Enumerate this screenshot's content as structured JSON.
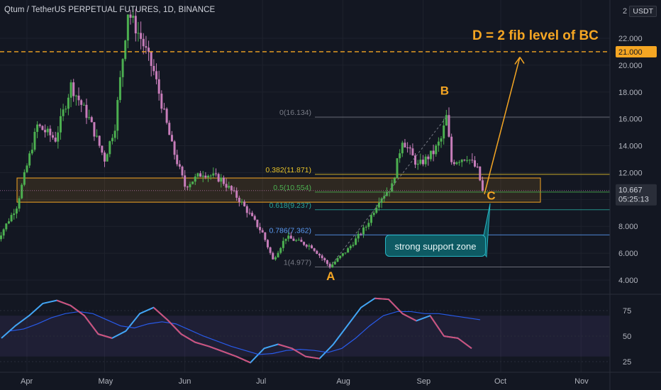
{
  "header": {
    "title": "Qtum / TetherUS PERPETUAL FUTURES, 1D, BINANCE",
    "currency_badge": "USDT"
  },
  "colors": {
    "background": "#131722",
    "up_candle": "#4caf50",
    "down_candle": "#c77dba",
    "fib_line": "#787b86",
    "accent": "#f5a623",
    "rsi_line": "#42a5f5",
    "rsi_ma": "#2962ff",
    "support_box": "#0e5a63"
  },
  "chart_data": [
    {
      "type": "candlestick",
      "title": "Qtum / TetherUS PERPETUAL FUTURES, 1D, BINANCE",
      "x_ticks": [
        "Apr",
        "May",
        "Jun",
        "Jul",
        "Aug",
        "Sep",
        "Oct",
        "Nov"
      ],
      "y_ticks": [
        "4.000",
        "6.000",
        "8.000",
        "10.000",
        "12.000",
        "14.000",
        "16.000",
        "18.000",
        "20.000",
        "22.000"
      ],
      "y_top_tick": "2",
      "ylim": [
        3.0,
        24.0
      ],
      "last_price": "10.667",
      "countdown": "05:25:13",
      "dashed_level": {
        "value": 21.0,
        "label": "21.000"
      },
      "price_path": [
        {
          "date": "Mar 20",
          "price": 6.8
        },
        {
          "date": "Mar 28",
          "price": 9.5
        },
        {
          "date": "Apr 5",
          "price": 15.5
        },
        {
          "date": "Apr 12",
          "price": 14.5
        },
        {
          "date": "Apr 18",
          "price": 18.5
        },
        {
          "date": "Apr 25",
          "price": 16.0
        },
        {
          "date": "May 1",
          "price": 13.0
        },
        {
          "date": "May 5",
          "price": 15.5
        },
        {
          "date": "May 10",
          "price": 24.0
        },
        {
          "date": "May 15",
          "price": 22.0
        },
        {
          "date": "May 20",
          "price": 19.5
        },
        {
          "date": "May 27",
          "price": 14.0
        },
        {
          "date": "Jun 1",
          "price": 11.0
        },
        {
          "date": "Jun 8",
          "price": 12.0
        },
        {
          "date": "Jun 15",
          "price": 11.5
        },
        {
          "date": "Jun 22",
          "price": 10.0
        },
        {
          "date": "Jul 1",
          "price": 7.5
        },
        {
          "date": "Jul 5",
          "price": 5.5
        },
        {
          "date": "Jul 10",
          "price": 7.2
        },
        {
          "date": "Jul 20",
          "price": 6.5
        },
        {
          "date": "Jul 27",
          "price": 5.0
        },
        {
          "date": "Aug 3",
          "price": 6.3
        },
        {
          "date": "Aug 10",
          "price": 8.0
        },
        {
          "date": "Aug 15",
          "price": 10.0
        },
        {
          "date": "Aug 20",
          "price": 11.0
        },
        {
          "date": "Aug 24",
          "price": 14.5
        },
        {
          "date": "Aug 30",
          "price": 12.5
        },
        {
          "date": "Sep 5",
          "price": 13.5
        },
        {
          "date": "Sep 8",
          "price": 14.5
        },
        {
          "date": "Sep 10",
          "price": 16.134
        },
        {
          "date": "Sep 12",
          "price": 12.8
        },
        {
          "date": "Sep 18",
          "price": 13.2
        },
        {
          "date": "Sep 22",
          "price": 12.2
        },
        {
          "date": "Sep 24",
          "price": 10.667
        }
      ],
      "fib_levels": [
        {
          "ratio": "0",
          "value": 16.134,
          "label": "0(16.134)",
          "color": "#787b86"
        },
        {
          "ratio": "0.382",
          "value": 11.871,
          "label": "0.382(11.871)",
          "color": "#e6c229"
        },
        {
          "ratio": "0.5",
          "value": 10.554,
          "label": "0.5(10.554)",
          "color": "#4caf50"
        },
        {
          "ratio": "0.618",
          "value": 9.237,
          "label": "0.618(9.237)",
          "color": "#26a69a"
        },
        {
          "ratio": "0.786",
          "value": 7.362,
          "label": "0.786(7.362)",
          "color": "#5b9cf6"
        },
        {
          "ratio": "1",
          "value": 4.977,
          "label": "1(4.977)",
          "color": "#787b86"
        }
      ],
      "support_zone": {
        "low": 9.8,
        "high": 11.6
      },
      "wave_labels": [
        {
          "text": "A",
          "date": "Jul 27",
          "value": 4.0
        },
        {
          "text": "B",
          "date": "Sep 9",
          "value": 17.8
        },
        {
          "text": "C",
          "date": "Sep 27",
          "value": 10.0
        }
      ],
      "annotations": [
        {
          "text": "D = 2 fib level of BC"
        },
        {
          "text": "strong support zone"
        }
      ]
    },
    {
      "type": "line",
      "title": "",
      "y_ticks": [
        "25",
        "50",
        "75"
      ],
      "ylim": [
        15,
        95
      ],
      "band": [
        30,
        70
      ],
      "rsi": [
        48,
        60,
        70,
        82,
        85,
        80,
        70,
        52,
        48,
        55,
        72,
        78,
        66,
        52,
        44,
        40,
        35,
        30,
        24,
        38,
        42,
        38,
        30,
        28,
        42,
        60,
        78,
        87,
        86,
        72,
        65,
        70,
        50,
        48,
        38
      ],
      "rsi_ma": [
        55,
        57,
        62,
        68,
        72,
        74,
        72,
        66,
        60,
        58,
        62,
        64,
        62,
        56,
        50,
        45,
        40,
        36,
        32,
        33,
        36,
        37,
        36,
        34,
        38,
        48,
        60,
        70,
        74,
        74,
        72,
        72,
        70,
        68,
        66
      ]
    }
  ]
}
